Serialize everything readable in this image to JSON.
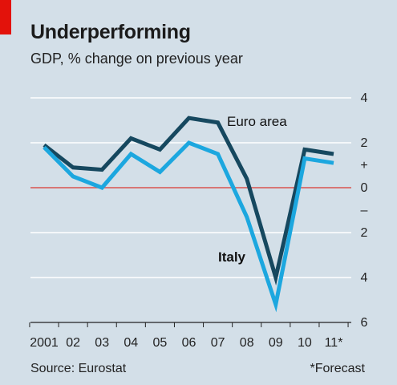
{
  "header": {
    "title": "Underperforming",
    "subtitle": "GDP, % change on previous year"
  },
  "footer": {
    "source": "Source: Eurostat",
    "note": "*Forecast"
  },
  "colors": {
    "background": "#d3dfe8",
    "accent": "#e3120b",
    "euro_area": "#16485f",
    "italy": "#1ca7df",
    "zero_line": "#d9534f",
    "grid": "#ffffff"
  },
  "chart_data": {
    "type": "line",
    "title": "Underperforming",
    "subtitle": "GDP, % change on previous year",
    "xlabel": "",
    "ylabel": "",
    "categories": [
      "2001",
      "02",
      "03",
      "04",
      "05",
      "06",
      "07",
      "08",
      "09",
      "10",
      "11*"
    ],
    "ylim": [
      -6,
      4
    ],
    "yticks": [
      {
        "value": 4,
        "label": "4"
      },
      {
        "value": 2,
        "label": "2"
      },
      {
        "value": 1,
        "label": "+"
      },
      {
        "value": 0,
        "label": "0"
      },
      {
        "value": -1,
        "label": "–"
      },
      {
        "value": -2,
        "label": "2"
      },
      {
        "value": -4,
        "label": "4"
      },
      {
        "value": -6,
        "label": "6"
      }
    ],
    "gridlines": [
      4,
      2,
      0,
      -2,
      -4
    ],
    "series": [
      {
        "name": "Euro area",
        "color": "#16485f",
        "values": [
          1.9,
          0.9,
          0.8,
          2.2,
          1.7,
          3.1,
          2.9,
          0.4,
          -4.0,
          1.7,
          1.5
        ]
      },
      {
        "name": "Italy",
        "color": "#1ca7df",
        "values": [
          1.8,
          0.5,
          0.0,
          1.5,
          0.7,
          2.0,
          1.5,
          -1.3,
          -5.2,
          1.3,
          1.1
        ]
      }
    ],
    "series_labels": [
      "Euro area",
      "Italy"
    ],
    "source": "Source: Eurostat",
    "footnote": "*Forecast"
  }
}
